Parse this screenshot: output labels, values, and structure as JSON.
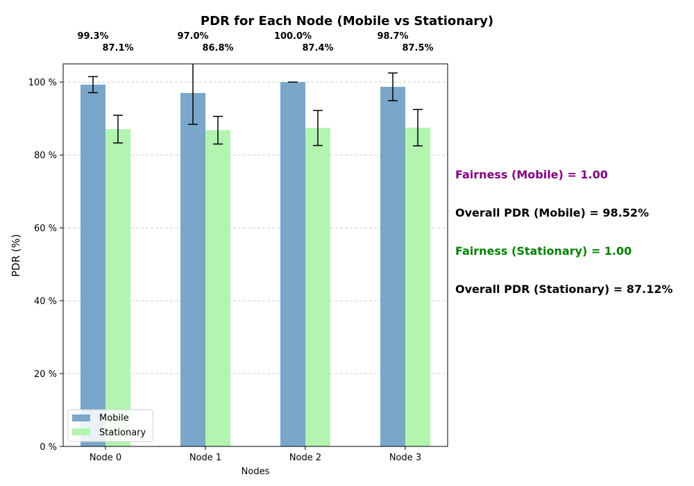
{
  "chart_data": {
    "type": "bar",
    "title": "PDR for Each Node (Mobile vs Stationary)",
    "xlabel": "Nodes",
    "ylabel": "PDR (%)",
    "ylim": [
      0,
      105
    ],
    "yticks": [
      0,
      20,
      40,
      60,
      80,
      100
    ],
    "ytick_suffix": " %",
    "grid": "y-dashed",
    "legend_position": "lower-left",
    "categories": [
      "Node 0",
      "Node 1",
      "Node 2",
      "Node 3"
    ],
    "series": [
      {
        "name": "Mobile",
        "color": "#7aa6c9",
        "values": [
          99.3,
          97.0,
          100.0,
          98.7
        ],
        "errors": [
          2.2,
          8.6,
          0.0,
          3.8
        ],
        "labels": [
          "99.3%",
          "97.0%",
          "100.0%",
          "98.7%"
        ]
      },
      {
        "name": "Stationary",
        "color": "#b2f4b0",
        "values": [
          87.1,
          86.8,
          87.4,
          87.5
        ],
        "errors": [
          3.8,
          3.8,
          4.8,
          5.0
        ],
        "labels": [
          "87.1%",
          "86.8%",
          "87.4%",
          "87.5%"
        ]
      }
    ],
    "annotations": [
      {
        "text": "Fairness (Mobile) = 1.00",
        "color": "#800080"
      },
      {
        "text": "Overall PDR (Mobile) = 98.52%",
        "color": "#000000"
      },
      {
        "text": "Fairness (Stationary) = 1.00",
        "color": "#008000"
      },
      {
        "text": "Overall PDR (Stationary) = 87.12%",
        "color": "#000000"
      }
    ]
  }
}
